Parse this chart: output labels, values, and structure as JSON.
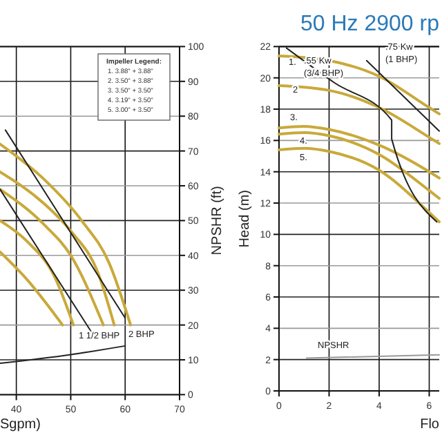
{
  "chart_data": [
    {
      "type": "line",
      "xlabel": "Sgpm)",
      "ylabel": "NPSHR (ft)",
      "xlim": [
        37,
        70
      ],
      "xticks": [
        40,
        50,
        60,
        70
      ],
      "ylim": [
        0,
        100
      ],
      "yticks": [
        0,
        10,
        20,
        30,
        40,
        50,
        60,
        70,
        80,
        90,
        100
      ],
      "grid": true,
      "line_style": "solid",
      "marker": "none",
      "series": [
        {
          "color": "#c9a93a",
          "x": [
            37,
            45,
            52,
            57,
            61
          ],
          "values": [
            72,
            62,
            50,
            38,
            20
          ]
        },
        {
          "color": "#c9a93a",
          "x": [
            37,
            45,
            50,
            55,
            58
          ],
          "values": [
            64,
            55,
            47,
            35,
            20
          ]
        },
        {
          "color": "#c9a93a",
          "x": [
            37,
            45,
            50,
            56
          ],
          "values": [
            59,
            49,
            40,
            20
          ]
        },
        {
          "color": "#c9a93a",
          "x": [
            37,
            42,
            47,
            50.5
          ],
          "values": [
            50,
            44,
            34,
            20
          ]
        },
        {
          "color": "#c9a93a",
          "x": [
            37,
            42,
            48.5
          ],
          "values": [
            41,
            33,
            20
          ]
        },
        {
          "color": "#222222",
          "x": [
            38,
            60
          ],
          "values": [
            76,
            22
          ]
        },
        {
          "color": "#222222",
          "x": [
            37,
            54
          ],
          "values": [
            59,
            17.5
          ]
        },
        {
          "color": "#222222",
          "x": [
            37,
            50,
            60
          ],
          "values": [
            9,
            11.5,
            14
          ]
        }
      ],
      "annotations": [
        "1 1/2 BHP",
        "2 BHP",
        "Impeller Legend:",
        "1.  3.88\" + 3.88\"",
        "2.  3.50\" + 3.88\"",
        "3.  3.50\" + 3.50\"",
        "4.  3.19\" + 3.50\"",
        "5.  3.00\" + 3.50\""
      ]
    },
    {
      "type": "line",
      "title": "50 Hz 2900 rp",
      "xlabel": "Flo",
      "ylabel": "Head (m)",
      "xlim": [
        0,
        6.4
      ],
      "xticks": [
        0,
        2,
        4,
        6
      ],
      "ylim": [
        0,
        22
      ],
      "yticks": [
        0,
        2,
        4,
        6,
        8,
        10,
        12,
        14,
        16,
        18,
        20,
        22
      ],
      "grid": true,
      "line_style": "solid",
      "marker": "none",
      "series": [
        {
          "color": "#c9a93a",
          "x": [
            0,
            2,
            4,
            6,
            6.4
          ],
          "values": [
            21.4,
            21.1,
            20.1,
            18.1,
            17.7
          ]
        },
        {
          "color": "#c9a93a",
          "x": [
            0,
            2,
            4,
            6,
            6.4
          ],
          "values": [
            19.5,
            19.2,
            18.1,
            16.2,
            15.8
          ]
        },
        {
          "color": "#c9a93a",
          "x": [
            0,
            1,
            2,
            4,
            6,
            6.4
          ],
          "values": [
            16.8,
            16.9,
            16.7,
            15.7,
            14,
            13.6
          ]
        },
        {
          "color": "#c9a93a",
          "x": [
            0,
            1,
            2,
            4,
            6,
            6.4
          ],
          "values": [
            16.4,
            16.5,
            16.3,
            15.1,
            12.8,
            12.3
          ]
        },
        {
          "color": "#c9a93a",
          "x": [
            0,
            1,
            2,
            4,
            6,
            6.4
          ],
          "values": [
            15.4,
            15.5,
            15.3,
            14.1,
            11.4,
            10.8
          ]
        },
        {
          "color": "#222222",
          "x": [
            0.3,
            2.2,
            4.5,
            4.5,
            6.3
          ],
          "values": [
            21.9,
            19.7,
            17.3,
            16.1,
            10.8
          ]
        },
        {
          "color": "#222222",
          "x": [
            3.5,
            6.4
          ],
          "values": [
            21.1,
            16.6
          ]
        },
        {
          "color": "#999999",
          "x": [
            1.1,
            6.4
          ],
          "values": [
            2.1,
            2.3
          ]
        }
      ],
      "annotations": [
        "1.",
        "2",
        "3.",
        "4.",
        "5.",
        ".55 Kw",
        "(3/4 BHP)",
        ".75 Kw",
        "(1 BHP)",
        "NPSHR"
      ]
    }
  ]
}
